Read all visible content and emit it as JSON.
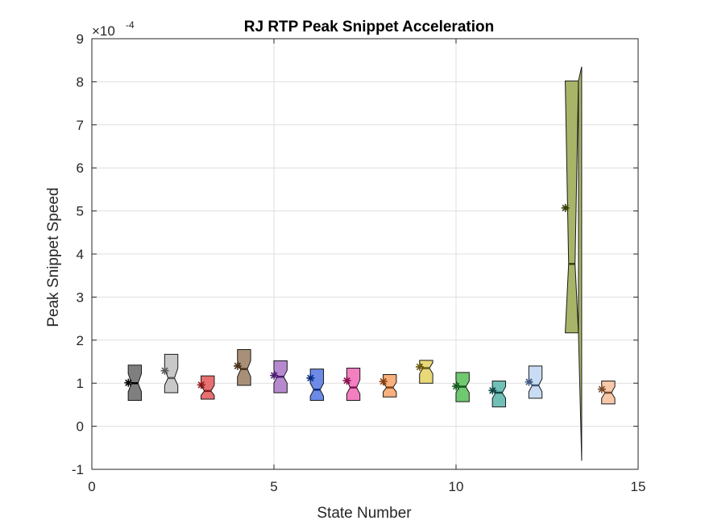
{
  "chart_data": {
    "type": "box",
    "title": "RJ  RTP Peak Snippet Acceleration",
    "xlabel": "State Number",
    "ylabel": "Peak Snippet Speed",
    "y_multiplier": {
      "base": "×10",
      "exponent": "-4"
    },
    "xlim": [
      0,
      15
    ],
    "ylim": [
      -1,
      9
    ],
    "xticks": [
      0,
      5,
      10,
      15
    ],
    "yticks": [
      -1,
      0,
      1,
      2,
      3,
      4,
      5,
      6,
      7,
      8,
      9
    ],
    "grid": true,
    "units_note": "y values in units of 1e-4",
    "boxes": [
      {
        "x": 1,
        "q1": 0.6,
        "q3": 1.42,
        "median": 1.0,
        "notch_lo": 0.8,
        "notch_hi": 1.22,
        "mean": 1.01,
        "color": "#7f7f7f",
        "mean_color": "#000000"
      },
      {
        "x": 2,
        "q1": 0.78,
        "q3": 1.67,
        "median": 1.12,
        "notch_lo": 0.95,
        "notch_hi": 1.35,
        "mean": 1.29,
        "color": "#c8c8c8",
        "mean_color": "#595959"
      },
      {
        "x": 3,
        "q1": 0.63,
        "q3": 1.17,
        "median": 0.82,
        "notch_lo": 0.72,
        "notch_hi": 0.95,
        "mean": 0.96,
        "color": "#e87070",
        "mean_color": "#8b1a1a"
      },
      {
        "x": 4,
        "q1": 0.95,
        "q3": 1.78,
        "median": 1.33,
        "notch_lo": 1.15,
        "notch_hi": 1.52,
        "mean": 1.4,
        "color": "#a89078",
        "mean_color": "#4a3018"
      },
      {
        "x": 5,
        "q1": 0.78,
        "q3": 1.52,
        "median": 1.15,
        "notch_lo": 1.0,
        "notch_hi": 1.3,
        "mean": 1.18,
        "color": "#b78ad0",
        "mean_color": "#4b1a70"
      },
      {
        "x": 6,
        "q1": 0.6,
        "q3": 1.33,
        "median": 0.85,
        "notch_lo": 0.7,
        "notch_hi": 1.0,
        "mean": 1.12,
        "color": "#6c8ae6",
        "mean_color": "#0a2a80"
      },
      {
        "x": 7,
        "q1": 0.6,
        "q3": 1.35,
        "median": 0.9,
        "notch_lo": 0.75,
        "notch_hi": 1.08,
        "mean": 1.06,
        "color": "#f47fc0",
        "mean_color": "#8a1050"
      },
      {
        "x": 8,
        "q1": 0.68,
        "q3": 1.2,
        "median": 0.9,
        "notch_lo": 0.8,
        "notch_hi": 1.02,
        "mean": 1.04,
        "color": "#f8b07c",
        "mean_color": "#8a4010"
      },
      {
        "x": 9,
        "q1": 1.0,
        "q3": 1.53,
        "median": 1.35,
        "notch_lo": 1.22,
        "notch_hi": 1.48,
        "mean": 1.38,
        "color": "#e8d878",
        "mean_color": "#6a5a10"
      },
      {
        "x": 10,
        "q1": 0.57,
        "q3": 1.25,
        "median": 0.92,
        "notch_lo": 0.78,
        "notch_hi": 1.05,
        "mean": 0.93,
        "color": "#70c870",
        "mean_color": "#0e5a18"
      },
      {
        "x": 11,
        "q1": 0.45,
        "q3": 1.05,
        "median": 0.78,
        "notch_lo": 0.65,
        "notch_hi": 0.92,
        "mean": 0.83,
        "color": "#70c0b8",
        "mean_color": "#0e4a48"
      },
      {
        "x": 12,
        "q1": 0.65,
        "q3": 1.4,
        "median": 0.95,
        "notch_lo": 0.8,
        "notch_hi": 1.1,
        "mean": 1.03,
        "color": "#c8dcf4",
        "mean_color": "#405a80"
      },
      {
        "x": 13,
        "q1": 2.17,
        "q3": 8.02,
        "median": 3.77,
        "notch_lo": -0.8,
        "notch_hi": 8.35,
        "mean": 5.07,
        "color": "#a8b468",
        "mean_color": "#3a4010"
      },
      {
        "x": 14,
        "q1": 0.52,
        "q3": 1.05,
        "median": 0.78,
        "notch_lo": 0.65,
        "notch_hi": 0.92,
        "mean": 0.86,
        "color": "#f8c8a8",
        "mean_color": "#7a4a2a"
      }
    ]
  }
}
